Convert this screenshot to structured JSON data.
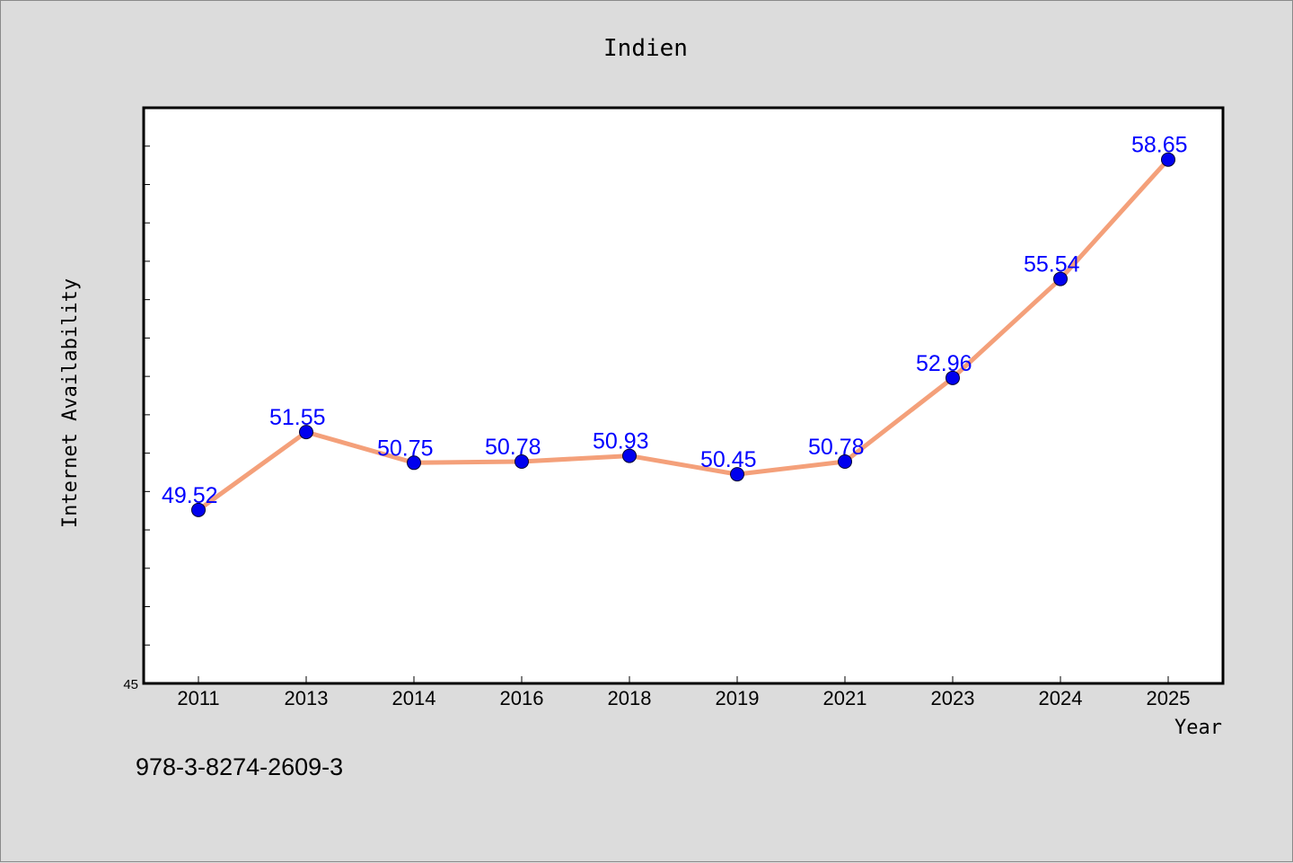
{
  "chart_data": {
    "type": "line",
    "title": "Indien",
    "xlabel": "Year",
    "ylabel": "Internet Availability",
    "categories": [
      "2011",
      "2013",
      "2014",
      "2016",
      "2018",
      "2019",
      "2021",
      "2023",
      "2024",
      "2025"
    ],
    "series": [
      {
        "values": [
          49.52,
          51.55,
          50.75,
          50.78,
          50.93,
          50.45,
          50.78,
          52.96,
          55.54,
          58.65
        ],
        "line_color": "#f4a07a",
        "marker_color": "#0000ee",
        "label_color": "#0000ff"
      }
    ],
    "y_tick_labels": [
      "45"
    ],
    "ylim": [
      45,
      60
    ],
    "grid": false,
    "legend": "none"
  },
  "footnote": "978-3-8274-2609-3",
  "colors": {
    "background": "#dcdcdc",
    "plot_area": "#ffffff",
    "axis": "#000000"
  }
}
